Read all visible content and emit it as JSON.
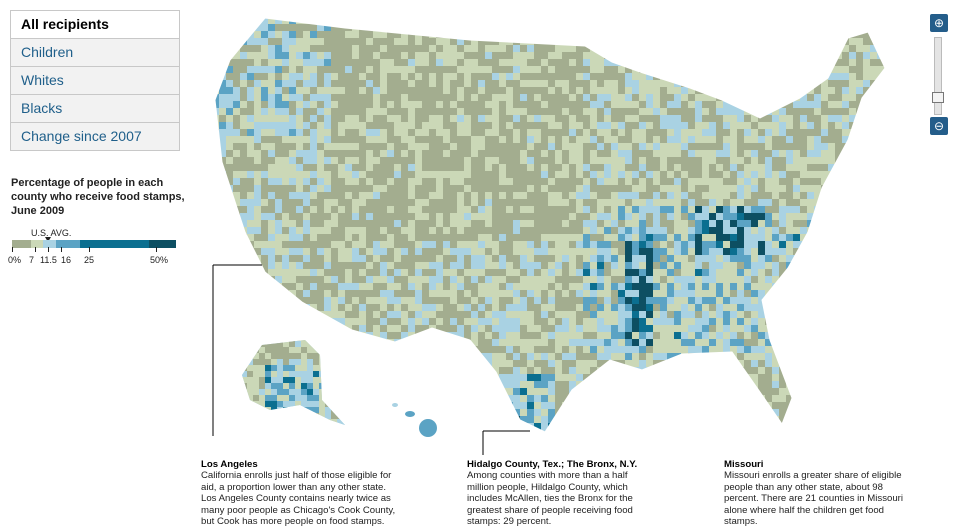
{
  "tabs": [
    "All recipients",
    "Children",
    "Whites",
    "Blacks",
    "Change since 2007"
  ],
  "legend": {
    "title": "Percentage of people in each county who receive food stamps, June 2009",
    "avg_label": "U.S. AVG.",
    "avg_value": 11.5,
    "ticks": [
      "0%",
      "7",
      "11.5",
      "16",
      "25",
      "50%"
    ],
    "bins": [
      0,
      7,
      11.5,
      16,
      25,
      50,
      60
    ],
    "colors": [
      "#a3ad8f",
      "#cbd8b7",
      "#a9d2e3",
      "#5ba3c4",
      "#0b6f90",
      "#0d4f62"
    ]
  },
  "zoom": {
    "in_icon": "zoom-in-icon",
    "out_icon": "zoom-out-icon",
    "level": 0.1
  },
  "notes": [
    {
      "title": "Los Angeles",
      "text": "California enrolls just half of those eligible for aid, a proportion lower than any other state. Los Angeles County contains nearly twice as many poor people as Chicago's Cook County, but Cook has more people on food stamps."
    },
    {
      "title": "Hidalgo County, Tex.; The Bronx, N.Y.",
      "text": "Among counties with more than a half million people, Hildalgo County, which includes McAllen, ties the Bronx for the greatest share of people receiving food stamps: 29 percent."
    },
    {
      "title": "Missouri",
      "text": "Missouri enrolls a greater share of eligible people than any other state, about 98 percent. There are 21 counties in Missouri alone where half the children get food stamps."
    }
  ]
}
